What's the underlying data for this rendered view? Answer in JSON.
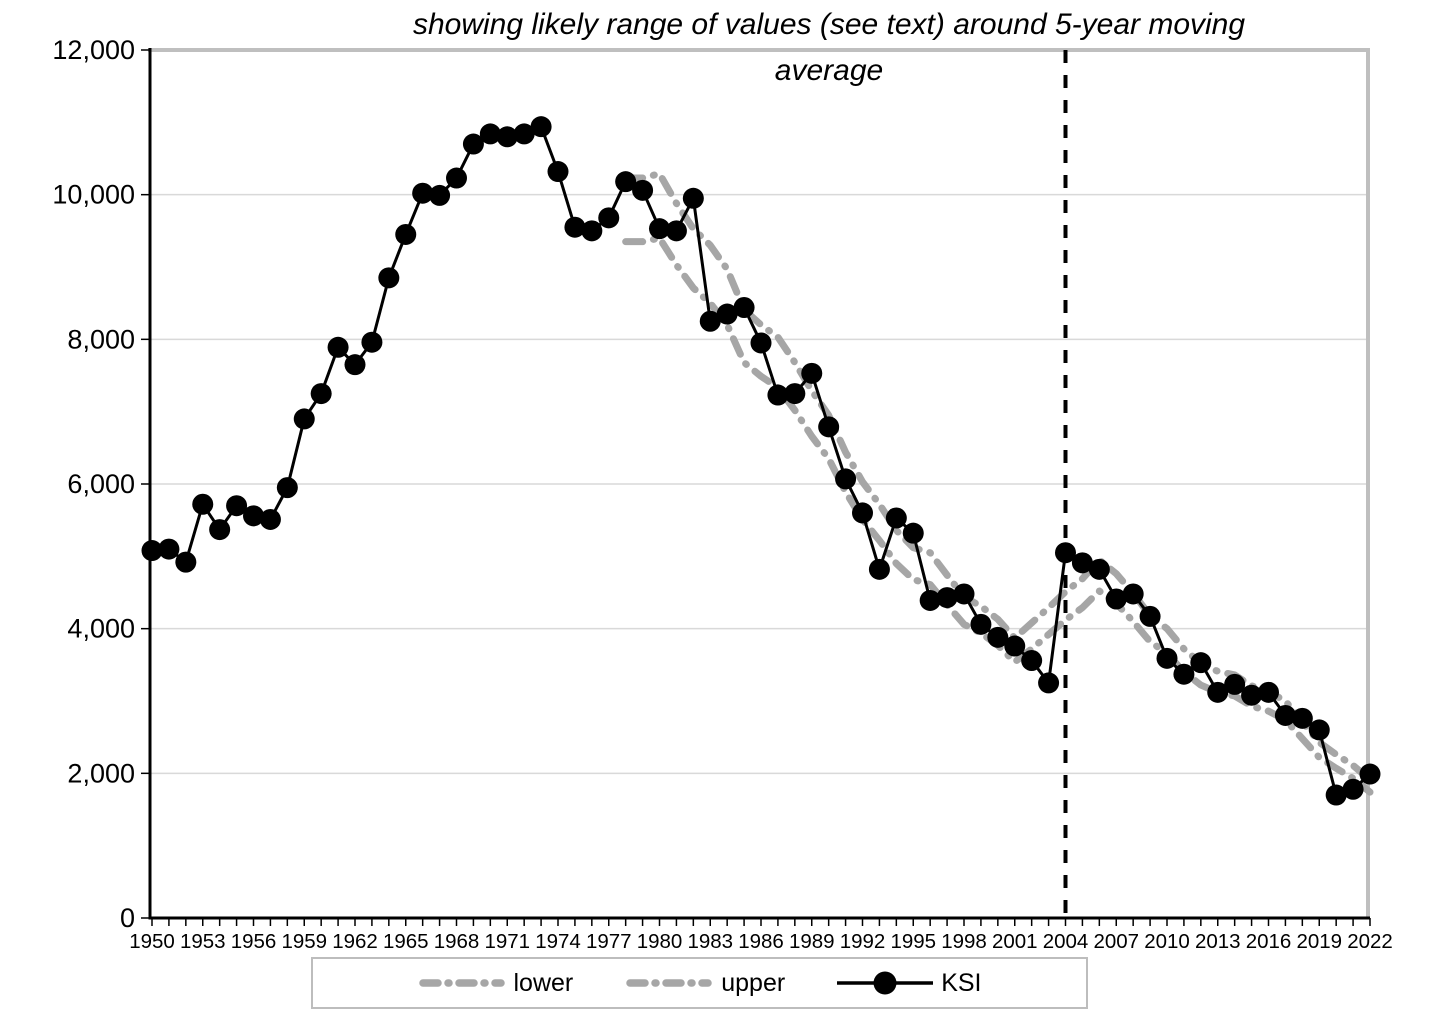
{
  "title": {
    "line1": "showing likely range of values (see text) around 5-year moving",
    "line2": "average"
  },
  "colors": {
    "axis": "#000000",
    "gridline": "#d9d9d9",
    "plot_border": "#bfbfbf",
    "band_gray": "#a6a6a6",
    "ksi_black": "#000000",
    "background": "#ffffff"
  },
  "legend": {
    "items": [
      {
        "label": "lower",
        "swatch": {
          "type": "dash",
          "color": "#a6a6a6"
        }
      },
      {
        "label": "upper",
        "swatch": {
          "type": "dash",
          "color": "#a6a6a6"
        }
      },
      {
        "label": "KSI",
        "swatch": {
          "type": "line-marker",
          "color": "#000000"
        }
      }
    ]
  },
  "chart_data": {
    "type": "line",
    "title": "showing likely range of values (see text) around 5-year moving average",
    "xlabel": "",
    "ylabel": "",
    "ylim": [
      0,
      12000
    ],
    "grid": true,
    "legend_position": "bottom",
    "y_ticks": [
      0,
      2000,
      4000,
      6000,
      8000,
      10000,
      12000
    ],
    "y_tick_labels": [
      "0",
      "2,000",
      "4,000",
      "6,000",
      "8,000",
      "10,000",
      "12,000"
    ],
    "x_tick_labels": [
      1950,
      1953,
      1956,
      1959,
      1962,
      1965,
      1968,
      1971,
      1974,
      1977,
      1980,
      1983,
      1986,
      1989,
      1992,
      1995,
      1998,
      2001,
      2004,
      2007,
      2010,
      2013,
      2016,
      2019,
      2022
    ],
    "x_minor_ticks_every_year": true,
    "x_range": [
      1950,
      2022
    ],
    "annotations": [
      {
        "type": "vline",
        "x": 2004,
        "color": "#000000",
        "dash": "13 12",
        "width": 4
      }
    ],
    "series": [
      {
        "name": "lower",
        "color": "#a6a6a6",
        "line_width": 7,
        "dash": "17 11 1 11",
        "marker": null,
        "x_start": 1978,
        "x": [
          1978,
          1979,
          1980,
          1981,
          1982,
          1983,
          1984,
          1985,
          1986,
          1987,
          1988,
          1989,
          1990,
          1991,
          1992,
          1993,
          1994,
          1995,
          1996,
          1997,
          1998,
          1999,
          2000,
          2001,
          2002,
          2003,
          2004,
          2005,
          2006,
          2007,
          2008,
          2009,
          2010,
          2011,
          2012,
          2013,
          2014,
          2015,
          2016,
          2017,
          2018,
          2019,
          2020,
          2021,
          2022
        ],
        "values": [
          9350,
          9350,
          9400,
          9030,
          8710,
          8500,
          8200,
          7680,
          7490,
          7330,
          7020,
          6660,
          6350,
          5890,
          5510,
          5220,
          4900,
          4680,
          4610,
          4330,
          4060,
          3940,
          3770,
          3540,
          3720,
          3920,
          4120,
          4290,
          4520,
          4350,
          4100,
          3820,
          3660,
          3400,
          3220,
          3120,
          3070,
          2930,
          2860,
          2740,
          2480,
          2220,
          2070,
          1930,
          1740
        ]
      },
      {
        "name": "upper",
        "color": "#a6a6a6",
        "line_width": 7,
        "dash": "17 11 1 11",
        "marker": null,
        "x_start": 1978,
        "x": [
          1978,
          1979,
          1980,
          1981,
          1982,
          1983,
          1984,
          1985,
          1986,
          1987,
          1988,
          1989,
          1990,
          1991,
          1992,
          1993,
          1994,
          1995,
          1996,
          1997,
          1998,
          1999,
          2000,
          2001,
          2002,
          2003,
          2004,
          2005,
          2006,
          2007,
          2008,
          2009,
          2010,
          2011,
          2012,
          2013,
          2014,
          2015,
          2016,
          2017,
          2018,
          2019,
          2020,
          2021,
          2022
        ],
        "values": [
          10230,
          10230,
          10290,
          9880,
          9530,
          9300,
          8970,
          8410,
          8200,
          8030,
          7680,
          7290,
          6950,
          6440,
          6030,
          5720,
          5360,
          5120,
          5050,
          4740,
          4440,
          4310,
          4130,
          3870,
          4080,
          4290,
          4510,
          4690,
          4950,
          4760,
          4490,
          4180,
          4000,
          3720,
          3520,
          3410,
          3360,
          3210,
          3130,
          3000,
          2710,
          2430,
          2260,
          2110,
          1910
        ]
      },
      {
        "name": "KSI",
        "color": "#000000",
        "line_width": 3,
        "dash": null,
        "marker": "circle",
        "marker_radius": 10.5,
        "x": [
          1950,
          1951,
          1952,
          1953,
          1954,
          1955,
          1956,
          1957,
          1958,
          1959,
          1960,
          1961,
          1962,
          1963,
          1964,
          1965,
          1966,
          1967,
          1968,
          1969,
          1970,
          1971,
          1972,
          1973,
          1974,
          1975,
          1976,
          1977,
          1978,
          1979,
          1980,
          1981,
          1982,
          1983,
          1984,
          1985,
          1986,
          1987,
          1988,
          1989,
          1990,
          1991,
          1992,
          1993,
          1994,
          1995,
          1996,
          1997,
          1998,
          1999,
          2000,
          2001,
          2002,
          2003,
          2004,
          2005,
          2006,
          2007,
          2008,
          2009,
          2010,
          2011,
          2012,
          2013,
          2014,
          2015,
          2016,
          2017,
          2018,
          2019,
          2020,
          2021,
          2022
        ],
        "values": [
          5080,
          5100,
          4920,
          5720,
          5370,
          5700,
          5560,
          5510,
          5950,
          6900,
          7250,
          7890,
          7650,
          7960,
          8850,
          9450,
          10020,
          9990,
          10230,
          10700,
          10840,
          10800,
          10840,
          10940,
          10320,
          9550,
          9500,
          9680,
          10180,
          10060,
          9530,
          9500,
          9950,
          8250,
          8350,
          8440,
          7950,
          7230,
          7250,
          7530,
          6790,
          6070,
          5600,
          4820,
          5530,
          5320,
          4390,
          4430,
          4480,
          4060,
          3880,
          3760,
          3560,
          3250,
          5050,
          4910,
          4820,
          4410,
          4480,
          4170,
          3590,
          3370,
          3530,
          3120,
          3230,
          3080,
          3120,
          2800,
          2760,
          2600,
          1700,
          1780,
          1990
        ]
      }
    ]
  }
}
